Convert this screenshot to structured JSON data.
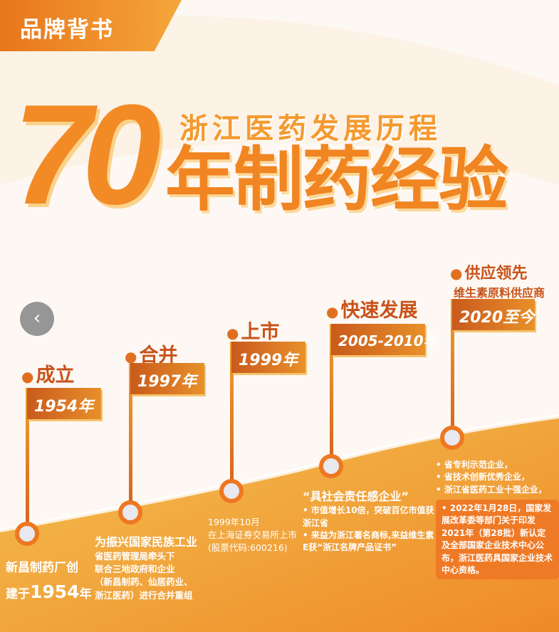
{
  "badge": "品牌背书",
  "title": {
    "number": "70",
    "subtitle": "浙江医药发展历程",
    "main": "年制药经验"
  },
  "timeline": [
    {
      "label": "成立",
      "year": "1954年",
      "desc": [
        "新昌制药厂创",
        "建于",
        "1954",
        "年"
      ]
    },
    {
      "label": "合并",
      "year": "1997年",
      "desc_title": "为振兴国家民族工业",
      "desc": [
        "省医药管理局牵头下",
        "联合三地政府和企业",
        "（新昌制药、仙居药业、",
        "浙江医药）进行合并重组"
      ]
    },
    {
      "label": "上市",
      "year": "1999年",
      "desc": [
        "1999年10月",
        "在上海证券交易所上市",
        "(股票代码:600216)"
      ]
    },
    {
      "label": "快速发展",
      "year": "2005-2010年",
      "desc_title": "“具社会责任感企业”",
      "desc": [
        "市值增长10倍，突破百亿市值获浙江省",
        "来益为浙江著名商标,来益维生素E获“浙江名牌产品证书”"
      ]
    },
    {
      "label": "供应领先",
      "sublabel": "维生素原料供应商",
      "year": "2020至今",
      "desc": [
        "省专利示范企业，",
        "省技术创新优秀企业，",
        "浙江省医药工业十强企业，",
        "2022年1月28日，国家发展改革委等部门关于印发2021年（第28批）新认定及全部国家企业技术中心公布，浙江医药具国家企业技术中心资格。"
      ]
    }
  ],
  "nav": {
    "prev_icon": "chevron-left-icon",
    "prev_glyph": "‹"
  },
  "colors": {
    "accent": "#ee7722",
    "dark": "#c8521a",
    "light": "#f5b040"
  }
}
